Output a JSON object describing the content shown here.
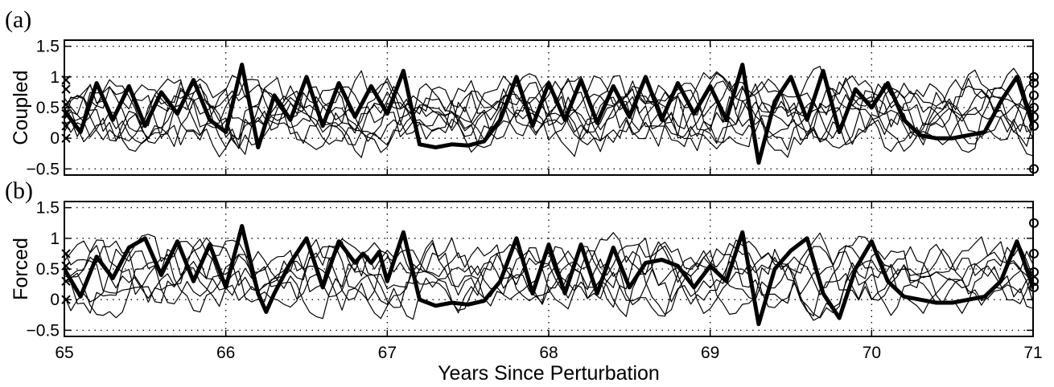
{
  "chart_data": [
    {
      "type": "line",
      "panel_label": "(a)",
      "ylabel": "Coupled",
      "xlim": [
        65,
        71
      ],
      "ylim": [
        -0.6,
        1.6
      ],
      "xticks": [
        65,
        66,
        67,
        68,
        69,
        70,
        71
      ],
      "yticks": [
        -0.5,
        0,
        0.5,
        1,
        1.5
      ],
      "ytick_labels": [
        "−0.5",
        "0",
        "0.5",
        "1",
        "1.5"
      ],
      "grid": true,
      "thin_series_count": 9,
      "seed": 11,
      "highlight_series": {
        "style": "thick",
        "points": [
          [
            65.0,
            0.45
          ],
          [
            65.1,
            0.1
          ],
          [
            65.2,
            0.9
          ],
          [
            65.3,
            0.3
          ],
          [
            65.4,
            0.85
          ],
          [
            65.5,
            0.2
          ],
          [
            65.6,
            0.75
          ],
          [
            65.7,
            0.4
          ],
          [
            65.8,
            0.95
          ],
          [
            65.9,
            0.3
          ],
          [
            66.0,
            0.1
          ],
          [
            66.1,
            1.2
          ],
          [
            66.2,
            -0.15
          ],
          [
            66.3,
            0.7
          ],
          [
            66.4,
            0.3
          ],
          [
            66.5,
            1.0
          ],
          [
            66.6,
            0.2
          ],
          [
            66.7,
            0.9
          ],
          [
            66.8,
            0.35
          ],
          [
            66.9,
            0.85
          ],
          [
            67.0,
            0.4
          ],
          [
            67.1,
            1.1
          ],
          [
            67.2,
            -0.1
          ],
          [
            67.3,
            -0.15
          ],
          [
            67.4,
            -0.1
          ],
          [
            67.5,
            -0.12
          ],
          [
            67.6,
            -0.05
          ],
          [
            67.7,
            0.3
          ],
          [
            67.8,
            1.0
          ],
          [
            67.9,
            0.2
          ],
          [
            68.0,
            0.9
          ],
          [
            68.1,
            0.3
          ],
          [
            68.2,
            0.95
          ],
          [
            68.3,
            0.25
          ],
          [
            68.4,
            0.85
          ],
          [
            68.5,
            0.35
          ],
          [
            68.6,
            1.0
          ],
          [
            68.7,
            0.3
          ],
          [
            68.8,
            0.9
          ],
          [
            68.9,
            0.4
          ],
          [
            69.0,
            0.85
          ],
          [
            69.1,
            0.3
          ],
          [
            69.2,
            1.2
          ],
          [
            69.3,
            -0.4
          ],
          [
            69.4,
            0.6
          ],
          [
            69.5,
            1.0
          ],
          [
            69.6,
            0.3
          ],
          [
            69.7,
            1.1
          ],
          [
            69.8,
            0.1
          ],
          [
            69.9,
            0.8
          ],
          [
            70.0,
            0.5
          ],
          [
            70.1,
            0.9
          ],
          [
            70.2,
            0.3
          ],
          [
            70.3,
            0.05
          ],
          [
            70.4,
            0.0
          ],
          [
            70.5,
            0.0
          ],
          [
            70.6,
            0.05
          ],
          [
            70.7,
            0.1
          ],
          [
            70.8,
            0.6
          ],
          [
            70.9,
            1.0
          ],
          [
            71.0,
            0.2
          ]
        ]
      },
      "end_markers": [
        0.2,
        0.35,
        0.5,
        0.7,
        0.9,
        1.0,
        -0.5
      ],
      "start_markers": [
        0.0,
        0.2,
        0.4,
        0.55,
        0.8,
        0.95
      ]
    },
    {
      "type": "line",
      "panel_label": "(b)",
      "ylabel": "Forced",
      "xlim": [
        65,
        71
      ],
      "ylim": [
        -0.6,
        1.6
      ],
      "xticks": [
        65,
        66,
        67,
        68,
        69,
        70,
        71
      ],
      "yticks": [
        -0.5,
        0,
        0.5,
        1,
        1.5
      ],
      "ytick_labels": [
        "−0.5",
        "0",
        "0.5",
        "1",
        "1.5"
      ],
      "grid": true,
      "thin_series_count": 7,
      "seed": 29,
      "xlabel": "Years Since Perturbation",
      "highlight_series": {
        "style": "thick",
        "points": [
          [
            65.0,
            0.5
          ],
          [
            65.1,
            0.05
          ],
          [
            65.2,
            0.7
          ],
          [
            65.3,
            0.35
          ],
          [
            65.4,
            0.85
          ],
          [
            65.5,
            1.0
          ],
          [
            65.6,
            0.4
          ],
          [
            65.7,
            0.95
          ],
          [
            65.8,
            0.3
          ],
          [
            65.9,
            0.9
          ],
          [
            66.0,
            0.2
          ],
          [
            66.1,
            1.2
          ],
          [
            66.2,
            0.1
          ],
          [
            66.25,
            -0.2
          ],
          [
            66.3,
            0.1
          ],
          [
            66.4,
            0.6
          ],
          [
            66.5,
            1.0
          ],
          [
            66.6,
            0.2
          ],
          [
            66.7,
            0.95
          ],
          [
            66.8,
            0.6
          ],
          [
            66.85,
            0.75
          ],
          [
            66.9,
            0.6
          ],
          [
            66.95,
            0.78
          ],
          [
            67.0,
            0.3
          ],
          [
            67.1,
            1.1
          ],
          [
            67.2,
            0.0
          ],
          [
            67.3,
            -0.1
          ],
          [
            67.4,
            -0.05
          ],
          [
            67.5,
            -0.08
          ],
          [
            67.6,
            -0.02
          ],
          [
            67.7,
            0.3
          ],
          [
            67.8,
            1.0
          ],
          [
            67.9,
            0.1
          ],
          [
            68.0,
            0.9
          ],
          [
            68.1,
            0.1
          ],
          [
            68.2,
            0.9
          ],
          [
            68.3,
            0.1
          ],
          [
            68.4,
            0.85
          ],
          [
            68.5,
            0.2
          ],
          [
            68.6,
            0.6
          ],
          [
            68.7,
            0.65
          ],
          [
            68.8,
            0.55
          ],
          [
            68.9,
            0.2
          ],
          [
            69.0,
            0.55
          ],
          [
            69.1,
            0.3
          ],
          [
            69.2,
            1.1
          ],
          [
            69.3,
            -0.4
          ],
          [
            69.4,
            0.5
          ],
          [
            69.5,
            0.8
          ],
          [
            69.6,
            1.0
          ],
          [
            69.7,
            0.1
          ],
          [
            69.8,
            -0.3
          ],
          [
            69.9,
            0.5
          ],
          [
            70.0,
            0.95
          ],
          [
            70.1,
            0.3
          ],
          [
            70.2,
            0.05
          ],
          [
            70.3,
            0.0
          ],
          [
            70.4,
            -0.05
          ],
          [
            70.5,
            -0.05
          ],
          [
            70.6,
            0.0
          ],
          [
            70.7,
            0.05
          ],
          [
            70.8,
            0.3
          ],
          [
            70.9,
            0.95
          ],
          [
            71.0,
            0.2
          ]
        ]
      },
      "end_markers": [
        0.2,
        0.3,
        0.45,
        0.75,
        1.25
      ],
      "start_markers": [
        0.0,
        0.3,
        0.55,
        0.75
      ]
    }
  ]
}
